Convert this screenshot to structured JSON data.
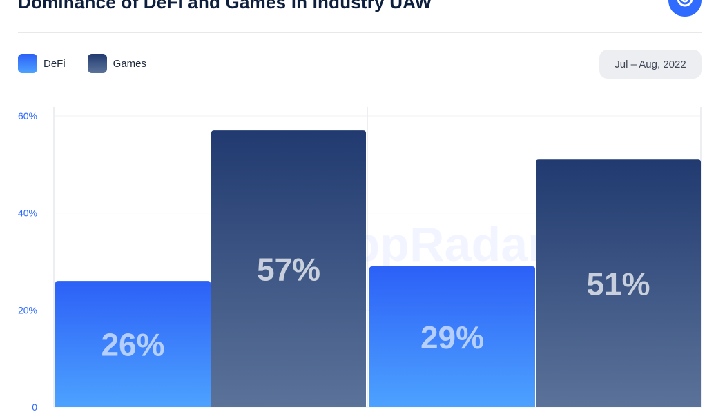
{
  "header": {
    "title": "Dominance of DeFi and Games in Industry UAW",
    "logo_icon": "dappradar-logo-icon"
  },
  "legend": {
    "items": [
      {
        "label": "DeFi",
        "color": "#2f6bff"
      },
      {
        "label": "Games",
        "color": "#3a5587"
      }
    ]
  },
  "filter": {
    "date_range": "Jul – Aug, 2022"
  },
  "watermark": "DappRadar",
  "chart_data": {
    "type": "bar",
    "categories": [
      "",
      ""
    ],
    "series": [
      {
        "name": "DeFi",
        "values": [
          26,
          29
        ],
        "labels": [
          "26%",
          "29%"
        ],
        "color_top": "#2c60f7",
        "color_bottom": "#4da2ff"
      },
      {
        "name": "Games",
        "values": [
          57,
          51
        ],
        "labels": [
          "57%",
          "51%"
        ],
        "color_top": "#213a70",
        "color_bottom": "#5b7399"
      }
    ],
    "title": "Dominance of DeFi and Games in Industry UAW",
    "xlabel": "",
    "ylabel": "",
    "ylim": [
      0,
      60
    ],
    "yticks": [
      0,
      20,
      40,
      60
    ],
    "ytick_labels": [
      "0",
      "20%",
      "40%",
      "60%"
    ],
    "grid": true,
    "legend_position": "top-left"
  }
}
